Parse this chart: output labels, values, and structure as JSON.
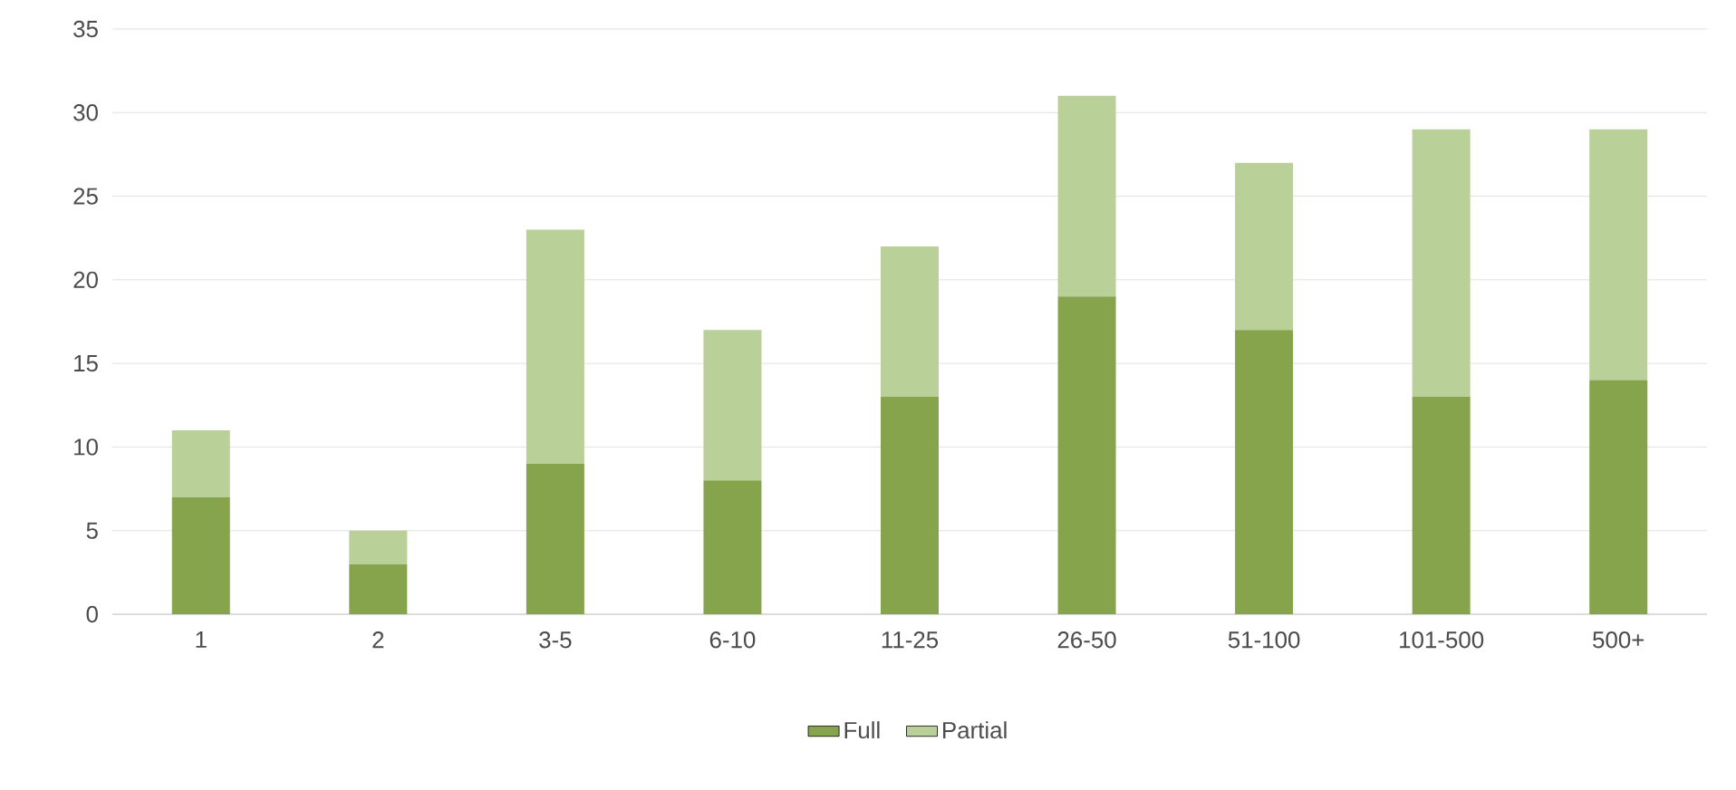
{
  "chart_data": {
    "type": "bar",
    "stacked": true,
    "categories": [
      "1",
      "2",
      "3-5",
      "6-10",
      "11-25",
      "26-50",
      "51-100",
      "101-500",
      "500+"
    ],
    "series": [
      {
        "name": "Full",
        "color": "#86a44c",
        "values": [
          7,
          3,
          9,
          8,
          13,
          19,
          17,
          13,
          14
        ]
      },
      {
        "name": "Partial",
        "color": "#b9d098",
        "values": [
          4,
          2,
          14,
          9,
          9,
          12,
          10,
          16,
          15
        ]
      }
    ],
    "ylim": [
      0,
      35
    ],
    "yticks": [
      0,
      5,
      10,
      15,
      20,
      25,
      30,
      35
    ],
    "grid": "y",
    "legend": "bottom"
  }
}
